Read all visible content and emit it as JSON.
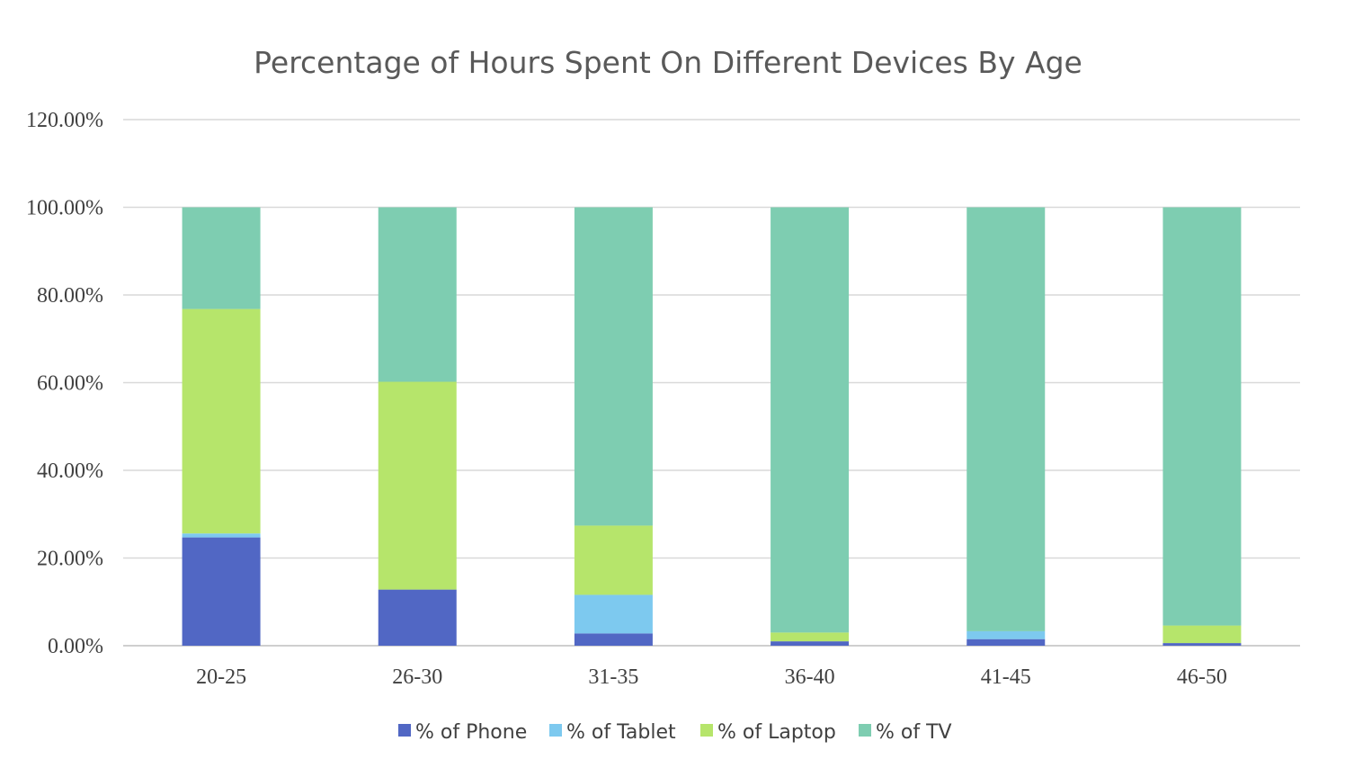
{
  "chart_data": {
    "type": "bar",
    "stacked": true,
    "title": "Percentage of Hours Spent On Different Devices By Age",
    "xlabel": "",
    "ylabel": "",
    "categories": [
      "20-25",
      "26-30",
      "31-35",
      "36-40",
      "41-45",
      "46-50"
    ],
    "ylim": [
      0,
      120
    ],
    "yticks": [
      0,
      20,
      40,
      60,
      80,
      100,
      120
    ],
    "ytick_labels": [
      "0.00%",
      "20.00%",
      "40.00%",
      "60.00%",
      "80.00%",
      "100.00%",
      "120.00%"
    ],
    "grid": true,
    "legend_position": "bottom",
    "series": [
      {
        "name": "% of Phone",
        "color": "#5167c4",
        "values": [
          24.7,
          12.8,
          2.8,
          1.0,
          1.5,
          0.6
        ]
      },
      {
        "name": "% of Tablet",
        "color": "#7dc9ef",
        "values": [
          0.9,
          0.0,
          8.8,
          0.0,
          1.8,
          0.0
        ]
      },
      {
        "name": "% of Laptop",
        "color": "#b6e56b",
        "values": [
          51.2,
          47.4,
          15.8,
          2.0,
          0.0,
          4.0
        ]
      },
      {
        "name": "% of TV",
        "color": "#7ecdb1",
        "values": [
          23.2,
          39.8,
          72.6,
          97.0,
          96.7,
          95.4
        ]
      }
    ]
  }
}
